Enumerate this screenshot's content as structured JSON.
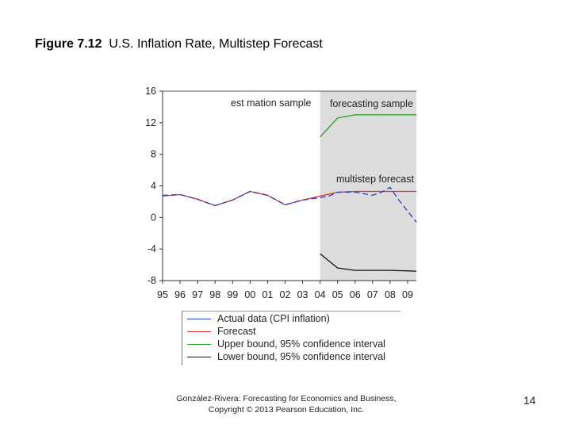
{
  "slide": {
    "title_bold": "Figure 7.12",
    "title_rest": "U.S. Inflation Rate, Multistep Forecast",
    "footer_line1": "González-Rivera: Forecasting for Economics and Business,",
    "footer_line2": "Copyright © 2013 Pearson Education, Inc.",
    "page_number": "14"
  },
  "chart_data": {
    "type": "line",
    "title": "",
    "xlabel": "",
    "ylabel": "",
    "xlim": [
      1995,
      2009.5
    ],
    "ylim": [
      -8,
      16
    ],
    "x_ticks": [
      "95",
      "96",
      "97",
      "98",
      "99",
      "00",
      "01",
      "02",
      "03",
      "04",
      "05",
      "06",
      "07",
      "08",
      "09"
    ],
    "y_ticks": [
      -8,
      -4,
      0,
      4,
      8,
      12,
      16
    ],
    "shaded_region": {
      "x_start": 2004.0,
      "x_end": 2009.5,
      "color": "#dcdcdc"
    },
    "annotations": {
      "estimation": "est mation sample",
      "forecasting": "forecasting sample",
      "multistep": "multistep forecast"
    },
    "series": [
      {
        "name": "Actual data (CPI inflation)",
        "color": "#2040c0",
        "dash": "7,4",
        "x": [
          1995.0,
          1996.0,
          1997.0,
          1998.0,
          1999.0,
          2000.0,
          2001.0,
          2002.0,
          2003.0,
          2004.0,
          2004.5,
          2005.0,
          2006.0,
          2007.0,
          2007.5,
          2008.0,
          2008.5,
          2009.5
        ],
        "y": [
          2.8,
          2.9,
          2.3,
          1.5,
          2.2,
          3.3,
          2.8,
          1.6,
          2.2,
          2.5,
          2.7,
          3.2,
          3.2,
          2.8,
          3.2,
          3.8,
          2.2,
          -0.6
        ]
      },
      {
        "name": "Forecast",
        "color": "#e03030",
        "dash": "",
        "x": [
          1995.0,
          1996.0,
          1997.0,
          1998.0,
          1999.0,
          2000.0,
          2001.0,
          2002.0,
          2003.0,
          2004.0,
          2005.0,
          2006.0,
          2007.0,
          2008.0,
          2009.5
        ],
        "y": [
          2.7,
          2.9,
          2.3,
          1.5,
          2.2,
          3.3,
          2.8,
          1.6,
          2.2,
          2.7,
          3.2,
          3.3,
          3.3,
          3.3,
          3.3
        ]
      },
      {
        "name": "Upper bound, 95% confidence interval",
        "color": "#20a020",
        "dash": "",
        "x": [
          2004.0,
          2005.0,
          2006.0,
          2007.0,
          2008.0,
          2009.5
        ],
        "y": [
          10.2,
          12.6,
          13.0,
          13.0,
          13.0,
          13.0
        ]
      },
      {
        "name": "Lower bound, 95% confidence interval",
        "color": "#111111",
        "dash": "",
        "x": [
          2004.0,
          2005.0,
          2006.0,
          2007.0,
          2008.0,
          2009.5
        ],
        "y": [
          -4.6,
          -6.4,
          -6.7,
          -6.7,
          -6.7,
          -6.8
        ]
      }
    ]
  }
}
